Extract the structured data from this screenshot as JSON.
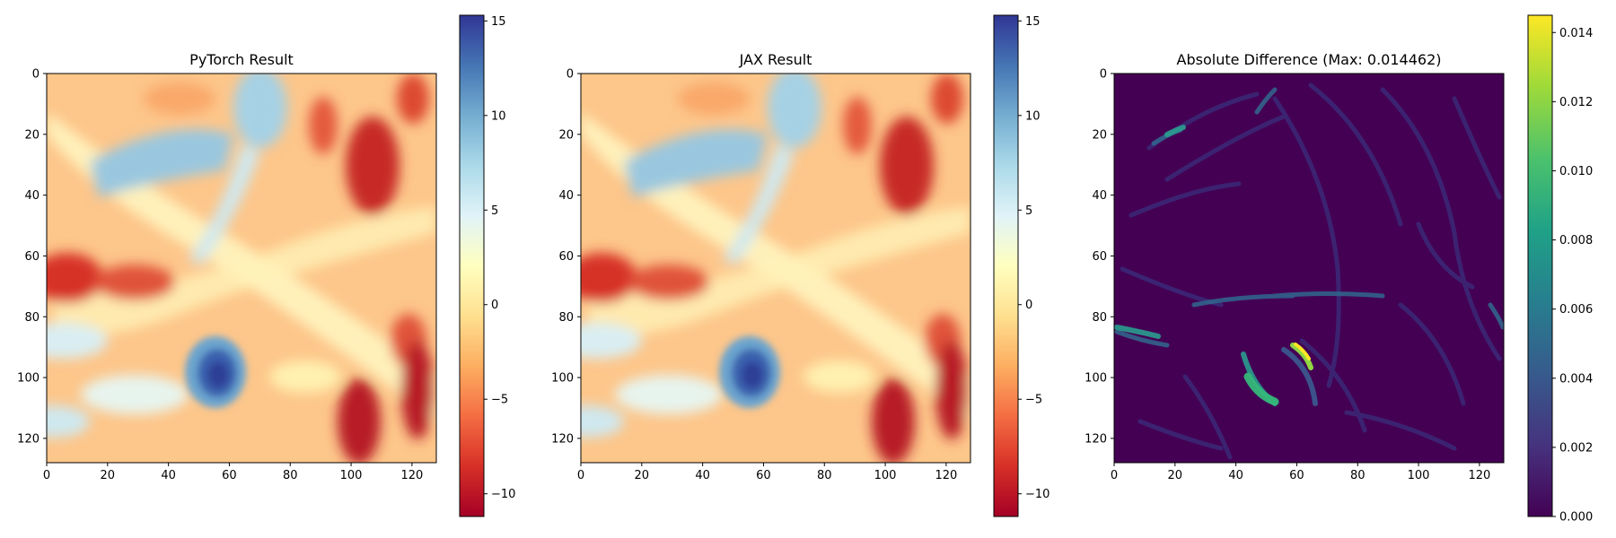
{
  "chart_data": [
    {
      "type": "heatmap",
      "title": "PyTorch Result",
      "xlim": [
        0,
        128
      ],
      "ylim": [
        128,
        0
      ],
      "xticks": [
        "0",
        "20",
        "40",
        "60",
        "80",
        "100",
        "120"
      ],
      "yticks": [
        "0",
        "20",
        "40",
        "60",
        "80",
        "100",
        "120"
      ],
      "colormap": "RdYlBu",
      "colorbar": {
        "range": [
          -11.2,
          15.3
        ],
        "ticks": [
          "−10",
          "−5",
          "0",
          "5",
          "10",
          "15"
        ],
        "tick_values": [
          -10,
          -5,
          0,
          5,
          10,
          15
        ]
      },
      "features": [
        {
          "x": 55,
          "y": 101,
          "value": 15,
          "shape": "vortex"
        },
        {
          "x": 70,
          "y": 10,
          "value": 9
        },
        {
          "x": 28,
          "y": 38,
          "value": 8
        },
        {
          "x": 8,
          "y": 67,
          "value": -10
        },
        {
          "x": 28,
          "y": 69,
          "value": -9
        },
        {
          "x": 108,
          "y": 42,
          "value": -10
        },
        {
          "x": 103,
          "y": 113,
          "value": -11
        },
        {
          "x": 121,
          "y": 104,
          "value": -10
        },
        {
          "x": 95,
          "y": 20,
          "value": -7
        },
        {
          "x": 123,
          "y": 9,
          "value": -8
        }
      ]
    },
    {
      "type": "heatmap",
      "title": "JAX Result",
      "xlim": [
        0,
        128
      ],
      "ylim": [
        128,
        0
      ],
      "xticks": [
        "0",
        "20",
        "40",
        "60",
        "80",
        "100",
        "120"
      ],
      "yticks": [
        "0",
        "20",
        "40",
        "60",
        "80",
        "100",
        "120"
      ],
      "colormap": "RdYlBu",
      "colorbar": {
        "range": [
          -11.2,
          15.3
        ],
        "ticks": [
          "−10",
          "−5",
          "0",
          "5",
          "10",
          "15"
        ],
        "tick_values": [
          -10,
          -5,
          0,
          5,
          10,
          15
        ]
      },
      "features": [
        {
          "x": 55,
          "y": 101,
          "value": 15,
          "shape": "vortex"
        },
        {
          "x": 70,
          "y": 10,
          "value": 9
        },
        {
          "x": 28,
          "y": 38,
          "value": 8
        },
        {
          "x": 8,
          "y": 67,
          "value": -10
        },
        {
          "x": 28,
          "y": 69,
          "value": -9
        },
        {
          "x": 108,
          "y": 42,
          "value": -10
        },
        {
          "x": 103,
          "y": 113,
          "value": -11
        },
        {
          "x": 121,
          "y": 104,
          "value": -10
        },
        {
          "x": 95,
          "y": 20,
          "value": -7
        },
        {
          "x": 123,
          "y": 9,
          "value": -8
        }
      ]
    },
    {
      "type": "heatmap",
      "title": "Absolute Difference (Max: 0.014462)",
      "xlim": [
        0,
        128
      ],
      "ylim": [
        128,
        0
      ],
      "xticks": [
        "0",
        "20",
        "40",
        "60",
        "80",
        "100",
        "120"
      ],
      "yticks": [
        "0",
        "20",
        "40",
        "60",
        "80",
        "100",
        "120"
      ],
      "colormap": "viridis",
      "max_value": 0.014462,
      "colorbar": {
        "range": [
          0,
          0.0145
        ],
        "ticks": [
          "0.000",
          "0.002",
          "0.004",
          "0.006",
          "0.008",
          "0.010",
          "0.012",
          "0.014"
        ],
        "tick_values": [
          0,
          0.002,
          0.004,
          0.006,
          0.008,
          0.01,
          0.012,
          0.014
        ]
      },
      "features": [
        {
          "x": 60,
          "y": 93,
          "value": 0.0144
        },
        {
          "x": 48,
          "y": 104,
          "value": 0.009
        },
        {
          "x": 3,
          "y": 85,
          "value": 0.007
        },
        {
          "x": 30,
          "y": 22,
          "value": 0.005
        },
        {
          "x": 55,
          "y": 83,
          "value": 0.004
        },
        {
          "x": 126,
          "y": 80,
          "value": 0.004
        }
      ]
    }
  ]
}
